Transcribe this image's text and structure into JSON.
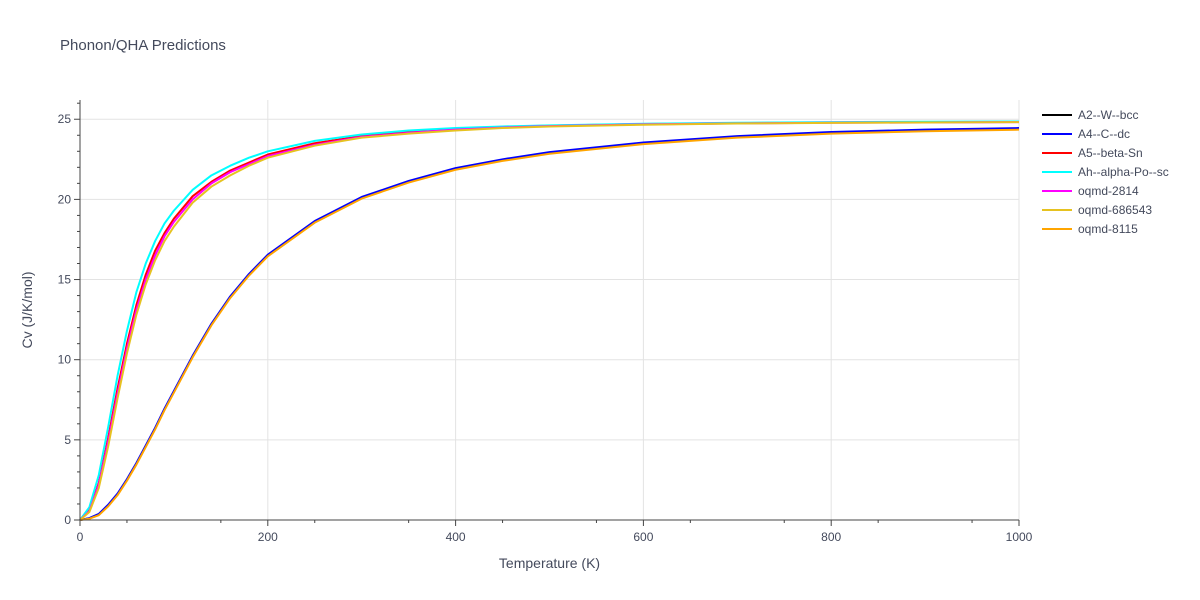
{
  "chart_data": {
    "type": "line",
    "title": "Phonon/QHA Predictions",
    "xlabel": "Temperature (K)",
    "ylabel": "Cv (J/K/mol)",
    "xlim": [
      0,
      1000
    ],
    "ylim": [
      0,
      26.2
    ],
    "xticks": [
      0,
      200,
      400,
      600,
      800,
      1000
    ],
    "yticks": [
      0,
      5,
      10,
      15,
      20,
      25
    ],
    "grid": true,
    "legend_position": "top-right",
    "x": [
      0,
      10,
      20,
      30,
      40,
      50,
      60,
      70,
      80,
      90,
      100,
      120,
      140,
      160,
      180,
      200,
      250,
      300,
      350,
      400,
      450,
      500,
      600,
      700,
      800,
      900,
      1000
    ],
    "series": [
      {
        "name": "A2--W--bcc",
        "color": "#000000",
        "values": [
          0,
          0.1,
          0.35,
          0.9,
          1.6,
          2.5,
          3.5,
          4.6,
          5.7,
          6.9,
          8.0,
          10.2,
          12.2,
          13.9,
          15.3,
          16.5,
          18.6,
          20.1,
          21.1,
          21.9,
          22.45,
          22.9,
          23.5,
          23.9,
          24.15,
          24.3,
          24.4
        ]
      },
      {
        "name": "A4--C--dc",
        "color": "#0000ff",
        "values": [
          0,
          0.12,
          0.38,
          0.95,
          1.65,
          2.55,
          3.55,
          4.65,
          5.75,
          6.95,
          8.05,
          10.25,
          12.25,
          13.95,
          15.35,
          16.55,
          18.65,
          20.15,
          21.15,
          21.95,
          22.5,
          22.95,
          23.55,
          23.95,
          24.2,
          24.35,
          24.45
        ]
      },
      {
        "name": "A5--beta-Sn",
        "color": "#ff0000",
        "values": [
          0,
          0.6,
          2.3,
          5.1,
          8.2,
          11.0,
          13.4,
          15.3,
          16.8,
          17.9,
          18.8,
          20.2,
          21.1,
          21.8,
          22.3,
          22.8,
          23.5,
          23.95,
          24.2,
          24.4,
          24.52,
          24.6,
          24.7,
          24.76,
          24.8,
          24.82,
          24.84
        ]
      },
      {
        "name": "Ah--alpha-Po--sc",
        "color": "#00ffff",
        "values": [
          0,
          0.8,
          2.8,
          5.8,
          9.0,
          11.8,
          14.2,
          16.0,
          17.4,
          18.5,
          19.3,
          20.6,
          21.5,
          22.1,
          22.6,
          23.0,
          23.65,
          24.05,
          24.3,
          24.45,
          24.55,
          24.62,
          24.72,
          24.78,
          24.82,
          24.84,
          24.86
        ]
      },
      {
        "name": "oqmd-2814",
        "color": "#ff00ff",
        "values": [
          0,
          0.55,
          2.2,
          4.9,
          7.9,
          10.7,
          13.1,
          15.0,
          16.5,
          17.7,
          18.6,
          20.0,
          21.0,
          21.7,
          22.2,
          22.7,
          23.4,
          23.9,
          24.15,
          24.35,
          24.48,
          24.57,
          24.68,
          24.74,
          24.78,
          24.8,
          24.82
        ]
      },
      {
        "name": "oqmd-686543",
        "color": "#e6c220",
        "values": [
          0,
          0.5,
          2.0,
          4.6,
          7.6,
          10.4,
          12.8,
          14.7,
          16.2,
          17.4,
          18.3,
          19.8,
          20.8,
          21.5,
          22.1,
          22.6,
          23.35,
          23.85,
          24.1,
          24.3,
          24.45,
          24.55,
          24.66,
          24.73,
          24.77,
          24.8,
          24.82
        ]
      },
      {
        "name": "oqmd-8115",
        "color": "#ffa500",
        "values": [
          0,
          0.08,
          0.3,
          0.85,
          1.55,
          2.45,
          3.45,
          4.55,
          5.65,
          6.85,
          7.95,
          10.15,
          12.15,
          13.85,
          15.25,
          16.45,
          18.55,
          20.05,
          21.05,
          21.85,
          22.4,
          22.85,
          23.45,
          23.85,
          24.1,
          24.25,
          24.35
        ]
      }
    ]
  }
}
